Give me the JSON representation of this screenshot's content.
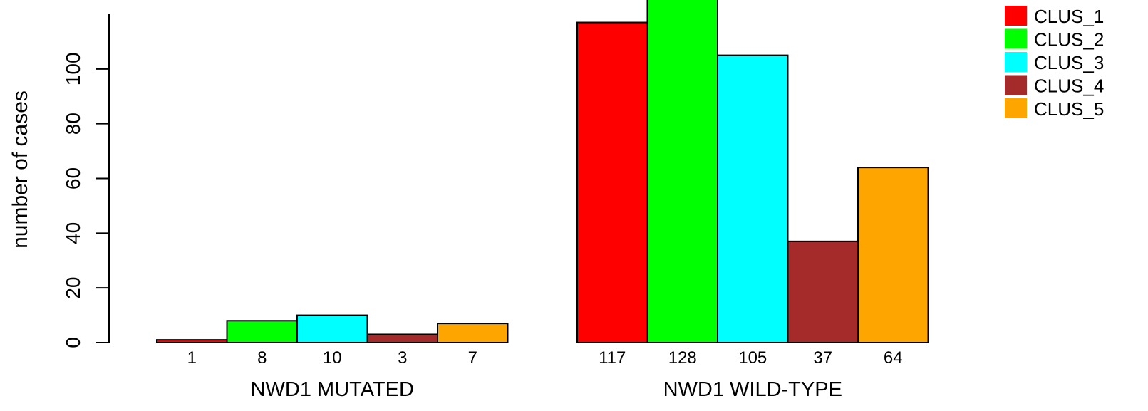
{
  "chart_data": {
    "type": "bar",
    "ylabel": "number of cases",
    "ylim": [
      0,
      120
    ],
    "yticks": [
      0,
      20,
      40,
      60,
      80,
      100
    ],
    "groups": [
      {
        "label": "NWD1 MUTATED",
        "values": [
          1,
          8,
          10,
          3,
          7
        ]
      },
      {
        "label": "NWD1 WILD-TYPE",
        "values": [
          117,
          128,
          105,
          37,
          64
        ]
      }
    ],
    "series": [
      {
        "name": "CLUS_1",
        "color": "#ff0000"
      },
      {
        "name": "CLUS_2",
        "color": "#00ff00"
      },
      {
        "name": "CLUS_3",
        "color": "#00ffff"
      },
      {
        "name": "CLUS_4",
        "color": "#a52a2a"
      },
      {
        "name": "CLUS_5",
        "color": "#ffa500"
      }
    ],
    "legend_position": "top-right"
  }
}
